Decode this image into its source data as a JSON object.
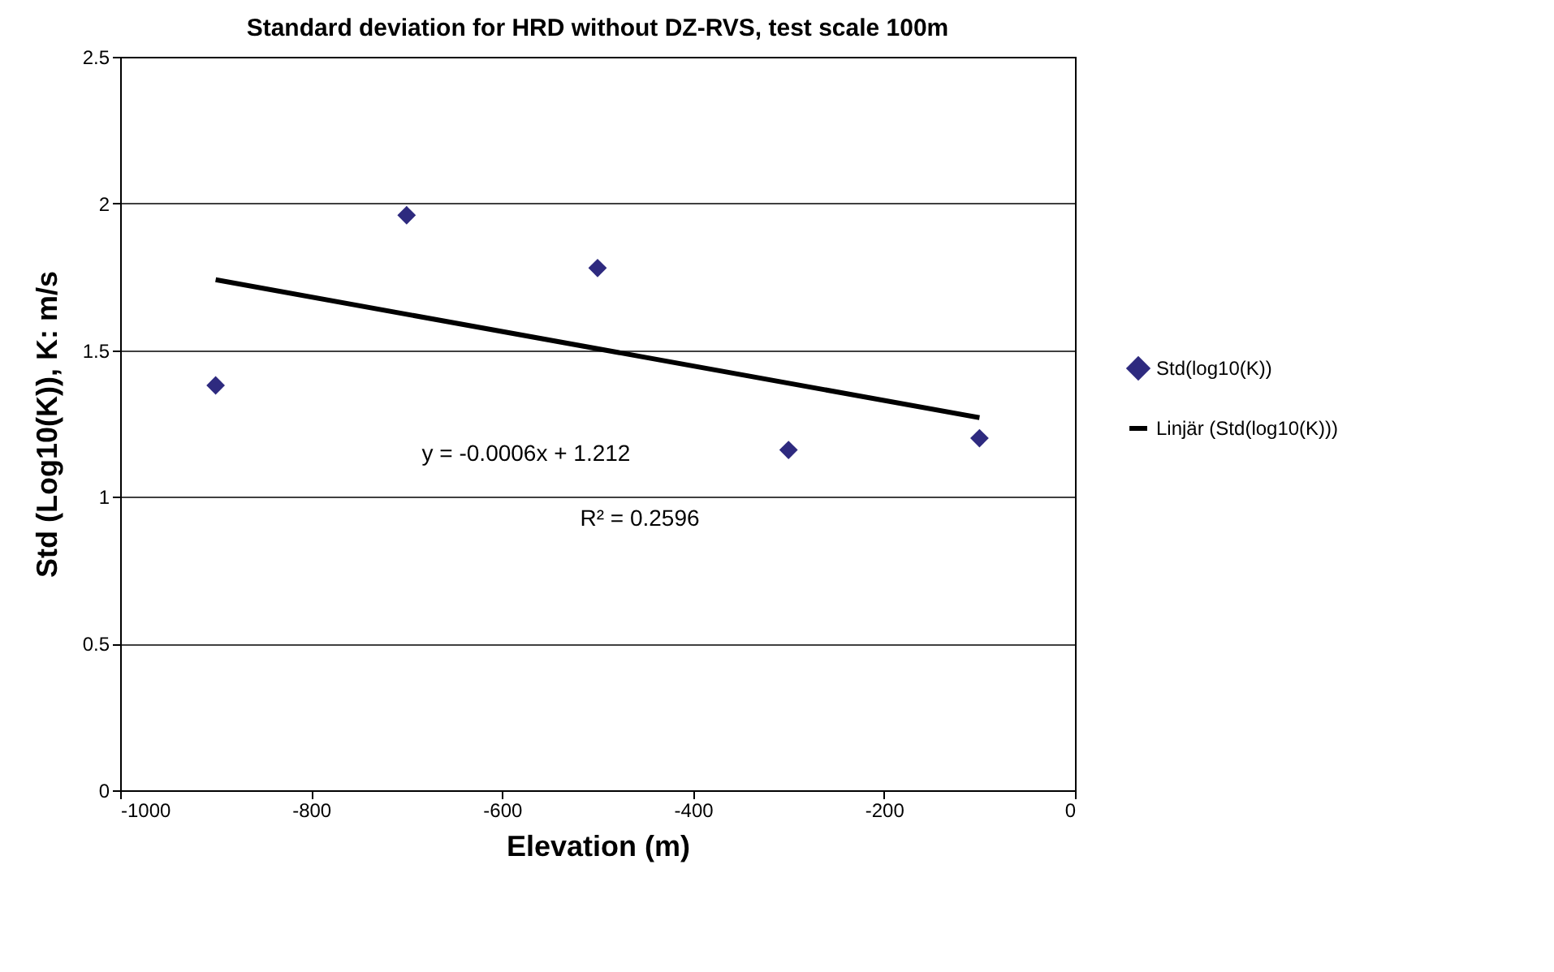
{
  "chart_data": {
    "type": "scatter",
    "title": "Standard deviation for HRD without DZ-RVS, test scale 100m",
    "xlabel": "Elevation (m)",
    "ylabel": "Std (Log10(K)), K: m/s",
    "x": [
      -900,
      -700,
      -500,
      -300,
      -100
    ],
    "series": [
      {
        "name": "Std(log10(K))",
        "color": "#2e2a7f",
        "values": [
          1.38,
          1.96,
          1.78,
          1.16,
          1.2
        ],
        "marker": "diamond"
      },
      {
        "name": "Linjär (Std(log10(K)))",
        "type": "line",
        "color": "#000000",
        "x": [
          -900,
          -100
        ],
        "values": [
          1.74,
          1.27
        ]
      }
    ],
    "annotations": [
      "y = -0.0006x + 1.212",
      "R² = 0.2596"
    ],
    "xlim": [
      -1000,
      0
    ],
    "xticks": [
      -1000,
      -800,
      -600,
      -400,
      -200,
      0
    ],
    "ylim": [
      0,
      2.5
    ],
    "yticks": [
      0,
      0.5,
      1,
      1.5,
      2,
      2.5
    ],
    "grid": "y",
    "legend": "right"
  }
}
